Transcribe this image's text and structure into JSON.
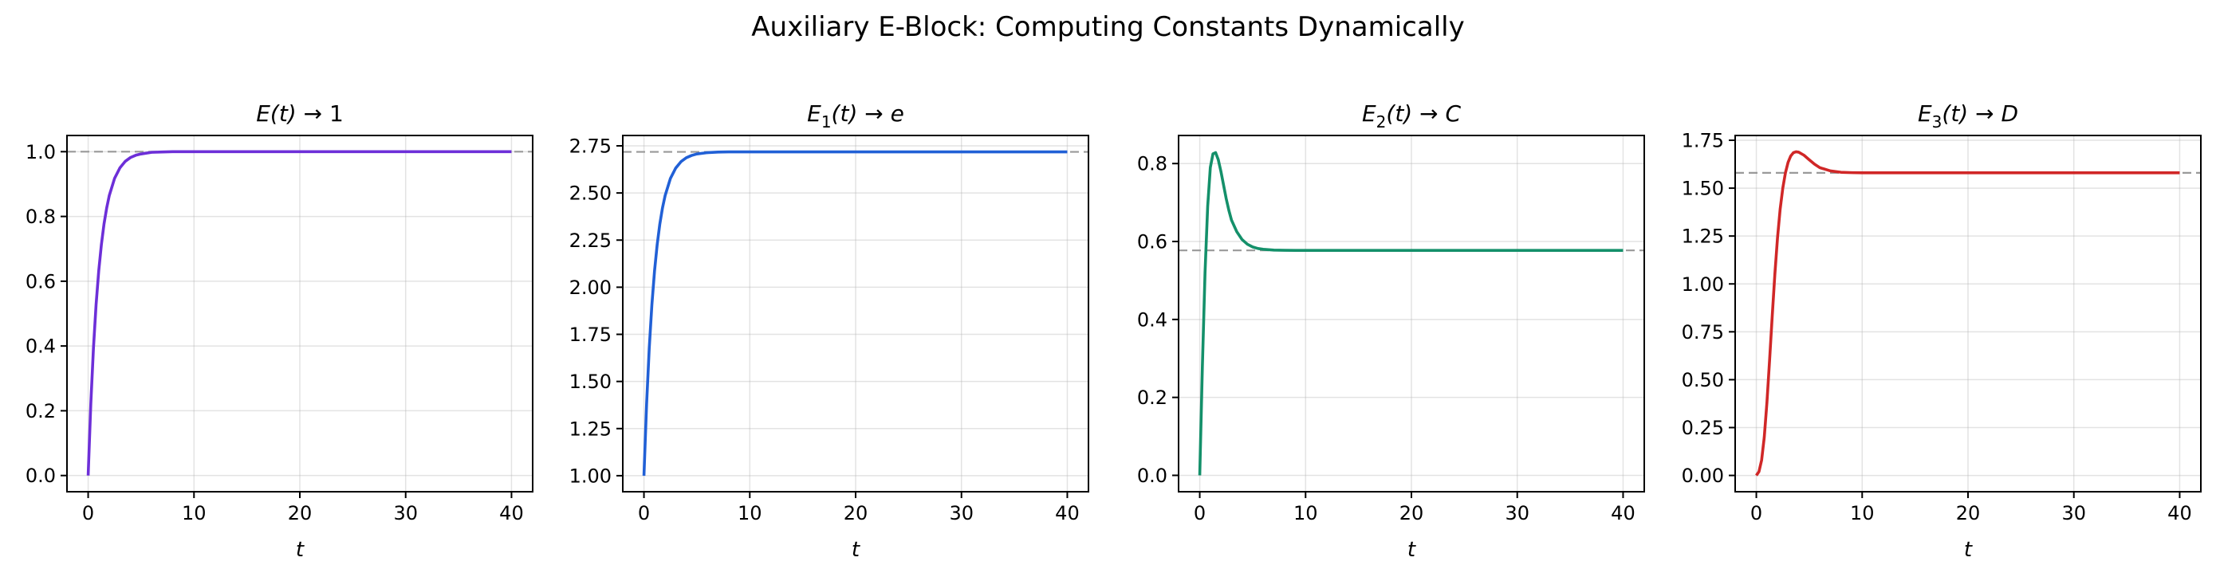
{
  "figure": {
    "title": "Auxiliary E-Block: Computing Constants Dynamically"
  },
  "chart_data": [
    {
      "type": "line",
      "title": "E(t) → 1",
      "title_parts": {
        "base": "E",
        "sub": "",
        "arg": "(t)",
        "arrow": "→",
        "target": "1"
      },
      "xlabel": "t",
      "ylabel": "",
      "xlim": [
        -2,
        42
      ],
      "ylim": [
        -0.05,
        1.05
      ],
      "xticks": [
        0,
        10,
        20,
        30,
        40
      ],
      "yticks": [
        0.0,
        0.2,
        0.4,
        0.6,
        0.8,
        1.0
      ],
      "ytick_labels": [
        "0.0",
        "0.2",
        "0.4",
        "0.6",
        "0.8",
        "1.0"
      ],
      "grid": true,
      "reference_line": {
        "y": 1.0,
        "style": "dashed",
        "color": "#999999"
      },
      "series": [
        {
          "color": "#6d2fd8",
          "x": [
            0,
            0.25,
            0.5,
            0.75,
            1,
            1.25,
            1.5,
            1.75,
            2,
            2.5,
            3,
            3.5,
            4,
            4.5,
            5,
            6,
            7,
            8,
            9,
            10,
            12,
            15,
            20,
            25,
            30,
            35,
            40
          ],
          "y": [
            0,
            0.221,
            0.393,
            0.528,
            0.632,
            0.713,
            0.777,
            0.826,
            0.865,
            0.918,
            0.95,
            0.97,
            0.982,
            0.989,
            0.993,
            0.998,
            0.999,
            1.0,
            1.0,
            1.0,
            1.0,
            1.0,
            1.0,
            1.0,
            1.0,
            1.0,
            1.0
          ]
        }
      ]
    },
    {
      "type": "line",
      "title": "E1(t) → e",
      "title_parts": {
        "base": "E",
        "sub": "1",
        "arg": "(t)",
        "arrow": "→",
        "target": "e"
      },
      "xlabel": "t",
      "ylabel": "",
      "xlim": [
        -2,
        42
      ],
      "ylim": [
        0.915,
        2.805
      ],
      "xticks": [
        0,
        10,
        20,
        30,
        40
      ],
      "yticks": [
        1.0,
        1.25,
        1.5,
        1.75,
        2.0,
        2.25,
        2.5,
        2.75
      ],
      "ytick_labels": [
        "1.00",
        "1.25",
        "1.50",
        "1.75",
        "2.00",
        "2.25",
        "2.50",
        "2.75"
      ],
      "grid": true,
      "reference_line": {
        "y": 2.718,
        "style": "dashed",
        "color": "#999999"
      },
      "series": [
        {
          "color": "#2160d6",
          "x": [
            0,
            0.25,
            0.5,
            0.75,
            1,
            1.25,
            1.5,
            1.75,
            2,
            2.5,
            3,
            3.5,
            4,
            4.5,
            5,
            6,
            7,
            8,
            9,
            10,
            12,
            15,
            20,
            25,
            30,
            35,
            40
          ],
          "y": [
            1.0,
            1.38,
            1.676,
            1.907,
            2.086,
            2.226,
            2.335,
            2.42,
            2.486,
            2.577,
            2.632,
            2.666,
            2.687,
            2.699,
            2.707,
            2.714,
            2.717,
            2.718,
            2.718,
            2.718,
            2.718,
            2.718,
            2.718,
            2.718,
            2.718,
            2.718,
            2.718
          ]
        }
      ]
    },
    {
      "type": "line",
      "title": "E2(t) → C",
      "title_parts": {
        "base": "E",
        "sub": "2",
        "arg": "(t)",
        "arrow": "→",
        "target": "C"
      },
      "xlabel": "t",
      "ylabel": "",
      "xlim": [
        -2,
        42
      ],
      "ylim": [
        -0.042,
        0.872
      ],
      "xticks": [
        0,
        10,
        20,
        30,
        40
      ],
      "yticks": [
        0.0,
        0.2,
        0.4,
        0.6,
        0.8
      ],
      "ytick_labels": [
        "0.0",
        "0.2",
        "0.4",
        "0.6",
        "0.8"
      ],
      "grid": true,
      "reference_line": {
        "y": 0.5772,
        "style": "dashed",
        "color": "#999999"
      },
      "series": [
        {
          "color": "#14906a",
          "x": [
            0,
            0.25,
            0.5,
            0.75,
            1,
            1.25,
            1.5,
            1.75,
            2,
            2.25,
            2.5,
            2.75,
            3,
            3.5,
            4,
            4.5,
            5,
            5.5,
            6,
            7,
            8,
            9,
            10,
            12,
            15,
            20,
            25,
            30,
            35,
            40
          ],
          "y": [
            0,
            0.28,
            0.52,
            0.69,
            0.79,
            0.825,
            0.828,
            0.81,
            0.78,
            0.745,
            0.71,
            0.68,
            0.655,
            0.625,
            0.605,
            0.593,
            0.586,
            0.582,
            0.58,
            0.578,
            0.5775,
            0.5772,
            0.5772,
            0.5772,
            0.5772,
            0.5772,
            0.5772,
            0.5772,
            0.5772,
            0.5772
          ]
        }
      ]
    },
    {
      "type": "line",
      "title": "E3(t) → D",
      "title_parts": {
        "base": "E",
        "sub": "3",
        "arg": "(t)",
        "arrow": "→",
        "target": "D"
      },
      "xlabel": "t",
      "ylabel": "",
      "xlim": [
        -2,
        42
      ],
      "ylim": [
        -0.085,
        1.775
      ],
      "xticks": [
        0,
        10,
        20,
        30,
        40
      ],
      "yticks": [
        0.0,
        0.25,
        0.5,
        0.75,
        1.0,
        1.25,
        1.5,
        1.75
      ],
      "ytick_labels": [
        "0.00",
        "0.25",
        "0.50",
        "0.75",
        "1.00",
        "1.25",
        "1.50",
        "1.75"
      ],
      "grid": true,
      "reference_line": {
        "y": 1.58,
        "style": "dashed",
        "color": "#999999"
      },
      "series": [
        {
          "color": "#d02727",
          "x": [
            0,
            0.25,
            0.5,
            0.75,
            1,
            1.25,
            1.5,
            1.75,
            2,
            2.25,
            2.5,
            2.75,
            3,
            3.25,
            3.5,
            3.75,
            4,
            4.5,
            5,
            5.5,
            6,
            7,
            8,
            9,
            10,
            12,
            15,
            20,
            25,
            30,
            35,
            40
          ],
          "y": [
            0,
            0.02,
            0.08,
            0.2,
            0.38,
            0.6,
            0.83,
            1.05,
            1.24,
            1.39,
            1.5,
            1.58,
            1.635,
            1.668,
            1.685,
            1.69,
            1.688,
            1.672,
            1.648,
            1.625,
            1.607,
            1.59,
            1.583,
            1.581,
            1.58,
            1.58,
            1.58,
            1.58,
            1.58,
            1.58,
            1.58,
            1.58
          ]
        }
      ]
    }
  ]
}
